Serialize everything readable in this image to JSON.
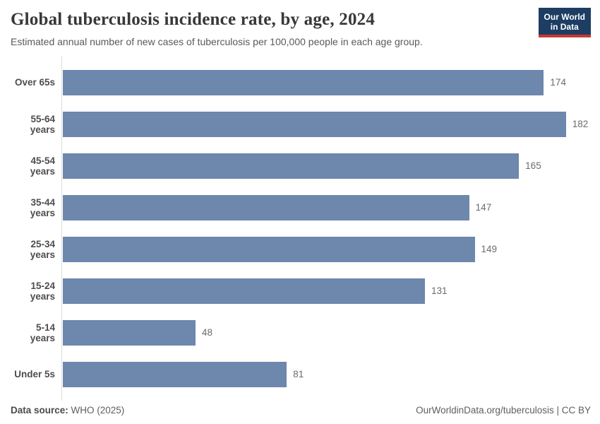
{
  "header": {
    "title": "Global tuberculosis incidence rate, by age, 2024",
    "subtitle": "Estimated annual number of new cases of tuberculosis per 100,000 people in each age group.",
    "logo": {
      "line1": "Our World",
      "line2": "in Data"
    }
  },
  "chart_data": {
    "type": "bar",
    "orientation": "horizontal",
    "title": "Global tuberculosis incidence rate, by age, 2024",
    "xlabel": "",
    "ylabel": "",
    "categories": [
      "Over 65s",
      "55-64 years",
      "45-54 years",
      "35-44 years",
      "25-34 years",
      "15-24 years",
      "5-14 years",
      "Under 5s"
    ],
    "values": [
      174,
      182,
      165,
      147,
      149,
      131,
      48,
      81
    ],
    "xlim": [
      0,
      191
    ],
    "grid": false,
    "value_labels": true,
    "legend": "none",
    "bar_color": "#6d87ad"
  },
  "footer": {
    "datasource_label": "Data source:",
    "datasource_value": " WHO (2025)",
    "right_text": "OurWorldinData.org/tuberculosis | CC BY"
  },
  "colors": {
    "bar": "#6d87ad",
    "logo_background": "#1d3d63",
    "logo_accent": "#c53832",
    "axis_line": "#dcdcdc",
    "title_text": "#383838",
    "subtitle_text": "#5a5a5a"
  }
}
